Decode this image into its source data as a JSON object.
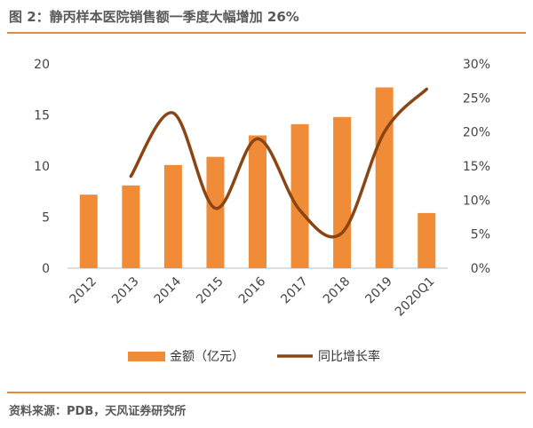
{
  "title": "图 2：静丙样本医院销售额一季度大幅增加 26%",
  "source": "资料来源：PDB，天风证券研究所",
  "colors": {
    "bar": "#F08C38",
    "line": "#8B4513",
    "accent": "#E6893A"
  },
  "chart_data": {
    "type": "bar",
    "categories": [
      "2012",
      "2013",
      "2014",
      "2015",
      "2016",
      "2017",
      "2018",
      "2019",
      "2020Q1"
    ],
    "series": [
      {
        "name": "金额（亿元）",
        "type": "bar",
        "axis": "left",
        "values": [
          7.2,
          8.1,
          10.1,
          10.9,
          13.0,
          14.1,
          14.8,
          17.7,
          5.4
        ]
      },
      {
        "name": "同比增长率",
        "type": "line",
        "axis": "right",
        "values": [
          null,
          0.135,
          0.228,
          0.088,
          0.19,
          0.085,
          0.052,
          0.2,
          0.263
        ]
      }
    ],
    "ylim": [
      0,
      20
    ],
    "y_ticks": [
      "0",
      "5",
      "10",
      "15",
      "20"
    ],
    "y2lim": [
      0,
      0.3
    ],
    "y2_ticks": [
      "0%",
      "5%",
      "10%",
      "15%",
      "20%",
      "25%",
      "30%"
    ],
    "legend_position": "bottom",
    "grid": false
  }
}
